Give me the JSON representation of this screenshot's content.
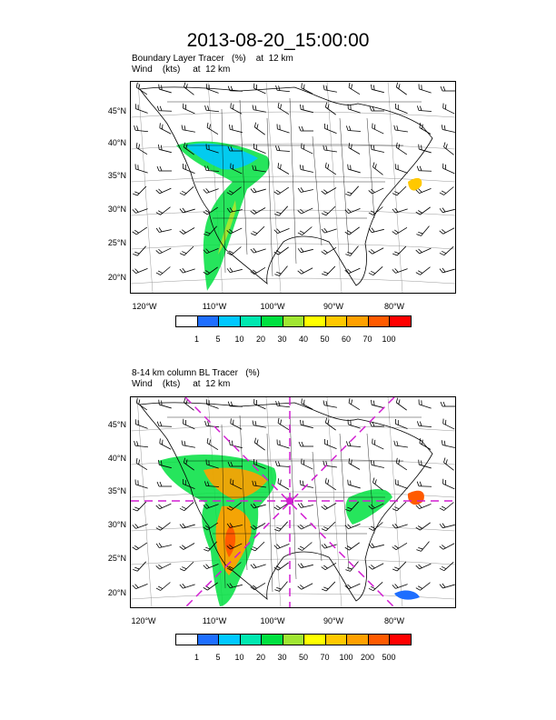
{
  "title": "2013-08-20_15:00:00",
  "panels": [
    {
      "heading": "Boundary Layer Tracer   (%)    at  12 km",
      "wind": "Wind    (kts)     at  12 km",
      "lat_labels": [
        "45°N",
        "40°N",
        "35°N",
        "30°N",
        "25°N",
        "20°N"
      ],
      "lon_labels": [
        "120°W",
        "110°W",
        "100°W",
        "90°W",
        "80°W"
      ],
      "legend_labels": [
        "1",
        "5",
        "10",
        "20",
        "30",
        "40",
        "50",
        "60",
        "70",
        "100"
      ],
      "legend_colors": [
        "#ffffff",
        "#1e6eff",
        "#00c8ff",
        "#00e8b0",
        "#00e040",
        "#a0e632",
        "#ffff00",
        "#ffc800",
        "#ffa000",
        "#ff5a00",
        "#ff0000"
      ],
      "guide_lines": false
    },
    {
      "heading": "8-14 km column BL Tracer   (%)",
      "wind": "Wind    (kts)     at  12 km",
      "lat_labels": [
        "45°N",
        "40°N",
        "35°N",
        "30°N",
        "25°N",
        "20°N"
      ],
      "lon_labels": [
        "120°W",
        "110°W",
        "100°W",
        "90°W",
        "80°W"
      ],
      "legend_labels": [
        "1",
        "5",
        "10",
        "20",
        "30",
        "50",
        "70",
        "100",
        "200",
        "500"
      ],
      "legend_colors": [
        "#ffffff",
        "#1e6eff",
        "#00c8ff",
        "#00e8b0",
        "#00e040",
        "#a0e632",
        "#ffff00",
        "#ffc800",
        "#ffa000",
        "#ff5a00",
        "#ff0000"
      ],
      "guide_lines": true
    }
  ]
}
